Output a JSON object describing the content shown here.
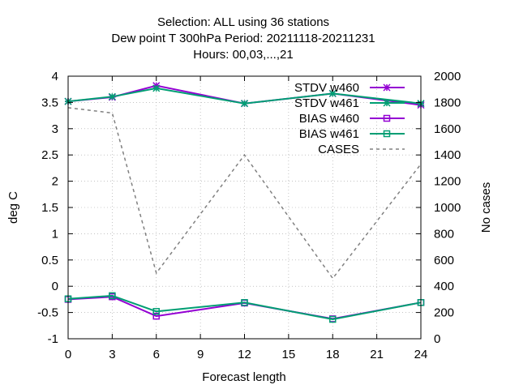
{
  "chart_data": {
    "type": "line",
    "title_lines": [
      "Selection: ALL using    36 stations",
      "Dew point T 300hPa   Period: 20211118-20211231",
      "Hours:  00,03,...,21"
    ],
    "xlabel": "Forecast length",
    "ylabel": "deg C",
    "y2label": "No cases",
    "xlim": [
      0,
      24
    ],
    "ylim": [
      -1,
      4
    ],
    "y2lim": [
      0,
      2000
    ],
    "xticks": [
      0,
      3,
      6,
      9,
      12,
      15,
      18,
      21,
      24
    ],
    "yticks": [
      -1,
      -0.5,
      0,
      0.5,
      1,
      1.5,
      2,
      2.5,
      3,
      3.5,
      4
    ],
    "y2ticks": [
      0,
      200,
      400,
      600,
      800,
      1000,
      1200,
      1400,
      1600,
      1800,
      2000
    ],
    "grid": true,
    "legend_position": "top-right",
    "x": [
      0,
      3,
      6,
      12,
      18,
      24
    ],
    "series": [
      {
        "name": "STDV w460",
        "color": "#9400d3",
        "marker": "star",
        "axis": "y",
        "dash": false,
        "values": [
          3.52,
          3.6,
          3.82,
          3.48,
          3.67,
          3.45
        ]
      },
      {
        "name": "STDV w461",
        "color": "#009e73",
        "marker": "star",
        "axis": "y",
        "dash": false,
        "values": [
          3.52,
          3.61,
          3.77,
          3.48,
          3.67,
          3.48
        ]
      },
      {
        "name": "BIAS w460",
        "color": "#9400d3",
        "marker": "square",
        "axis": "y",
        "dash": false,
        "values": [
          -0.25,
          -0.2,
          -0.57,
          -0.32,
          -0.62,
          -0.31
        ]
      },
      {
        "name": "BIAS w461",
        "color": "#009e73",
        "marker": "square",
        "axis": "y",
        "dash": false,
        "values": [
          -0.24,
          -0.18,
          -0.48,
          -0.31,
          -0.63,
          -0.31
        ]
      },
      {
        "name": "CASES",
        "color": "#808080",
        "marker": "none",
        "axis": "y2",
        "dash": true,
        "values": [
          1760,
          1720,
          500,
          1400,
          460,
          1330
        ]
      }
    ]
  }
}
